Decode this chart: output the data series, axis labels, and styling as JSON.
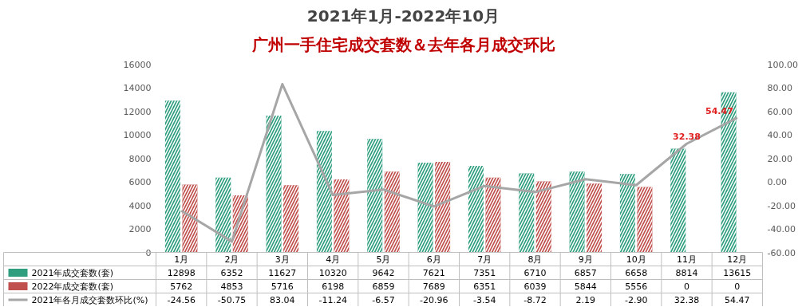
{
  "chart_data": {
    "type": "bar",
    "title": "2021年1月-2022年10月",
    "subtitle": "广州一手住宅成交套数＆去年各月成交环比",
    "categories": [
      "1月",
      "2月",
      "3月",
      "4月",
      "5月",
      "6月",
      "7月",
      "8月",
      "9月",
      "10月",
      "11月",
      "12月"
    ],
    "series": [
      {
        "name": "2021年成交套数(套)",
        "color": "#2e9e7e",
        "values": [
          12898,
          6352,
          11627,
          10320,
          9642,
          7621,
          7351,
          6710,
          6857,
          6658,
          8814,
          13615
        ]
      },
      {
        "name": "2022年成交套数(套)",
        "color": "#c0504d",
        "values": [
          5762,
          4853,
          5716,
          6198,
          6859,
          7689,
          6351,
          6039,
          5844,
          5556,
          0,
          0
        ]
      },
      {
        "name": "2021年各月成交套数环比(%)",
        "type": "line",
        "axis": "y2",
        "color": "#a6a6a6",
        "values": [
          -24.56,
          -50.75,
          83.04,
          -11.24,
          -6.57,
          -20.96,
          -3.54,
          -8.72,
          2.19,
          -2.9,
          32.38,
          54.47
        ],
        "value_labels": [
          "-24.56",
          "-50.75",
          "83.04",
          "-11.24",
          "-6.57",
          "-20.96",
          "-3.54",
          "-8.72",
          "2.19",
          "-2.90",
          "32.38",
          "54.47"
        ]
      }
    ],
    "annotations": [
      {
        "text": "32.38",
        "x": "11月",
        "y": 9238
      },
      {
        "text": "54.47",
        "x": "12月",
        "y": 11447
      }
    ],
    "ylim": [
      0,
      16000
    ],
    "yticks": [
      0,
      2000,
      4000,
      6000,
      8000,
      10000,
      12000,
      14000,
      16000
    ],
    "y2lim": [
      -60,
      100
    ],
    "y2ticks": [
      {
        "value": -60,
        "label": "-60.00"
      },
      {
        "value": -40,
        "label": "-40.00"
      },
      {
        "value": -20,
        "label": "-20.00"
      },
      {
        "value": 0,
        "label": "0.00"
      },
      {
        "value": 20,
        "label": "20.00"
      },
      {
        "value": 40,
        "label": "40.00"
      },
      {
        "value": 60,
        "label": "60.00"
      },
      {
        "value": 80,
        "label": "80.00"
      },
      {
        "value": 100,
        "label": "100.00"
      }
    ],
    "data_labels": true,
    "legend": "bottom",
    "grid": false
  }
}
